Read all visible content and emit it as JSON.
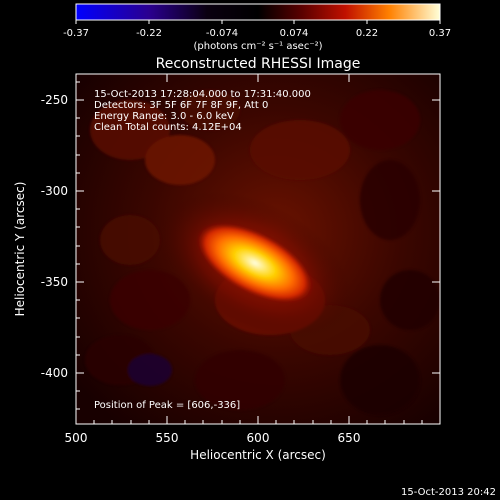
{
  "colorbar": {
    "tick_labels": [
      "-0.37",
      "-0.22",
      "-0.074",
      "0.074",
      "0.22",
      "0.37"
    ],
    "units": "(photons cm⁻² s⁻¹ asec⁻²)",
    "colors": [
      "#0000ff",
      "#1a0070",
      "#000000",
      "#400000",
      "#a00000",
      "#ff3a00",
      "#ffb000",
      "#ffffe0"
    ]
  },
  "title": "Reconstructed RHESSI Image",
  "annotations": {
    "line1": "15-Oct-2013 17:28:04.000  to  17:31:40.000",
    "line2": "Detectors: 3F 5F 6F 7F 8F 9F, Att 0",
    "line3": "Energy Range: 3.0 - 6.0 keV",
    "line4": "Clean    Total counts: 4.12E+04",
    "peak": "Position of Peak = [606,-336]"
  },
  "axes": {
    "xlabel": "Heliocentric X (arcsec)",
    "ylabel": "Heliocentric Y (arcsec)",
    "xticks": [
      "500",
      "550",
      "600",
      "650"
    ],
    "yticks": [
      "-250",
      "-300",
      "-350",
      "-400"
    ]
  },
  "footer": {
    "timestamp": "15-Oct-2013 20:42"
  }
}
